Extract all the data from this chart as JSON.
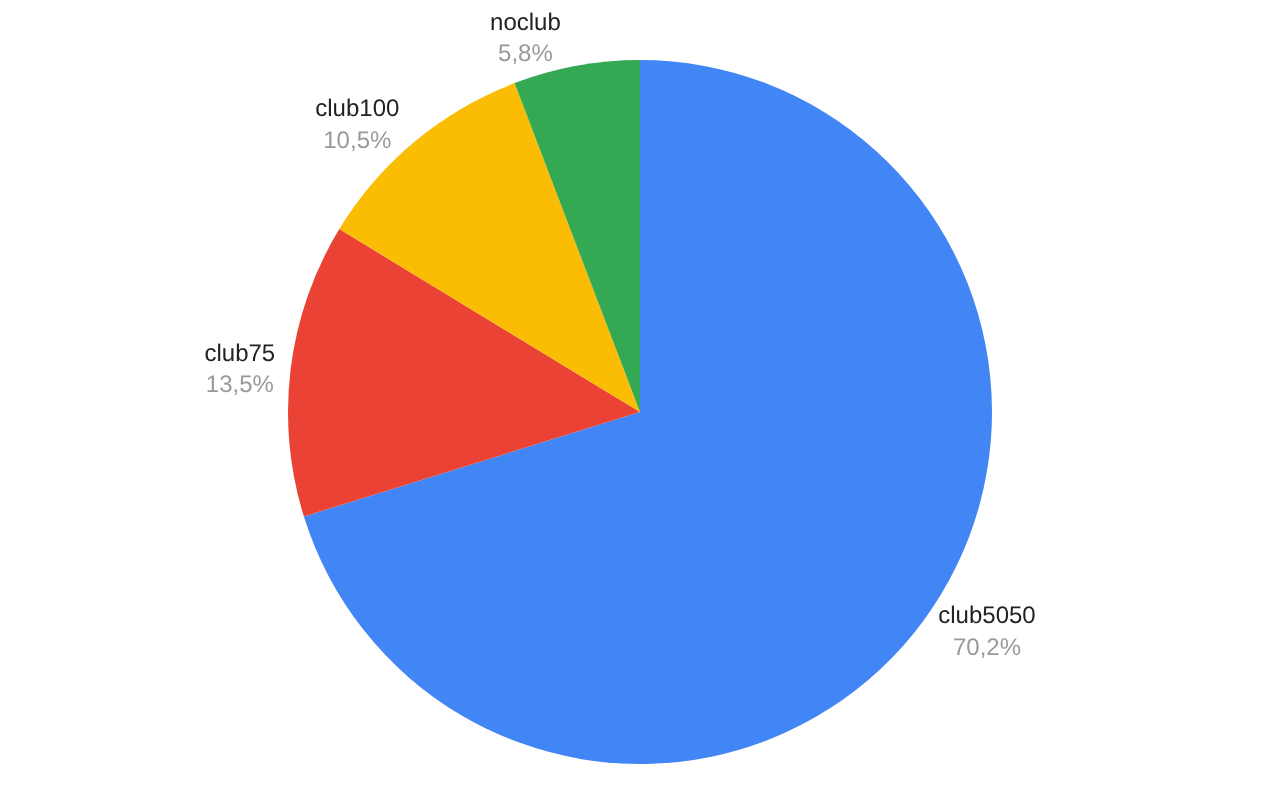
{
  "chart_data": {
    "type": "pie",
    "categories": [
      "club5050",
      "club75",
      "club100",
      "noclub"
    ],
    "values": [
      70.2,
      13.5,
      10.5,
      5.8
    ],
    "colors": [
      "#4285f4",
      "#ea4335",
      "#fbbc04",
      "#34a853"
    ],
    "value_labels": [
      "70,2%",
      "13,5%",
      "10,5%",
      "5,8%"
    ]
  }
}
